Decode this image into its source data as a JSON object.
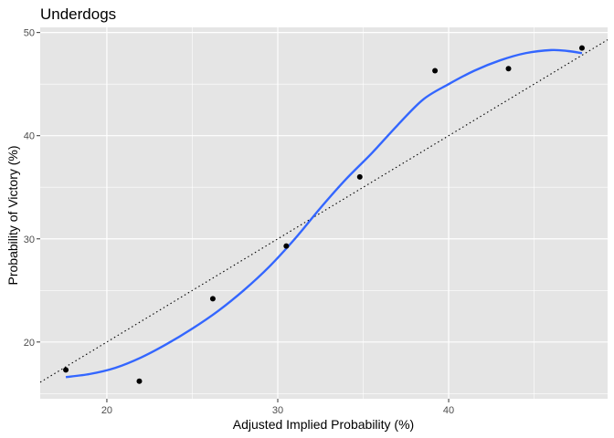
{
  "chart_data": {
    "type": "scatter",
    "title": "Underdogs",
    "xlabel": "Adjusted Implied Probability (%)",
    "ylabel": "Probability of Victory (%)",
    "xlim": [
      16.1,
      49.3
    ],
    "ylim": [
      14.5,
      50.5
    ],
    "xticks": [
      20,
      30,
      40
    ],
    "yticks": [
      20,
      30,
      40,
      50
    ],
    "grid": true,
    "legend": "none",
    "points": [
      {
        "x": 17.6,
        "y": 17.3
      },
      {
        "x": 21.9,
        "y": 16.2
      },
      {
        "x": 26.2,
        "y": 24.2
      },
      {
        "x": 30.5,
        "y": 29.3
      },
      {
        "x": 34.8,
        "y": 36.0
      },
      {
        "x": 39.2,
        "y": 46.3
      },
      {
        "x": 43.5,
        "y": 46.5
      },
      {
        "x": 47.8,
        "y": 48.5
      }
    ],
    "smooth": {
      "x": [
        17.6,
        19.0,
        20.5,
        22.0,
        23.5,
        25.0,
        26.5,
        28.0,
        29.5,
        31.0,
        32.5,
        34.0,
        35.5,
        37.0,
        38.5,
        40.0,
        41.5,
        43.0,
        44.5,
        46.0,
        47.0,
        47.8
      ],
      "y": [
        16.6,
        16.9,
        17.5,
        18.5,
        19.8,
        21.3,
        23.0,
        25.0,
        27.3,
        30.0,
        33.0,
        35.8,
        38.3,
        41.0,
        43.5,
        45.0,
        46.3,
        47.3,
        48.0,
        48.3,
        48.2,
        48.0
      ],
      "color": "#3366ff"
    },
    "reference_line": {
      "slope": 1,
      "intercept": 0,
      "style": "dotted",
      "color": "#000000"
    },
    "colors": {
      "panel": "#e5e5e5",
      "grid": "#ffffff",
      "points": "#000000"
    }
  }
}
